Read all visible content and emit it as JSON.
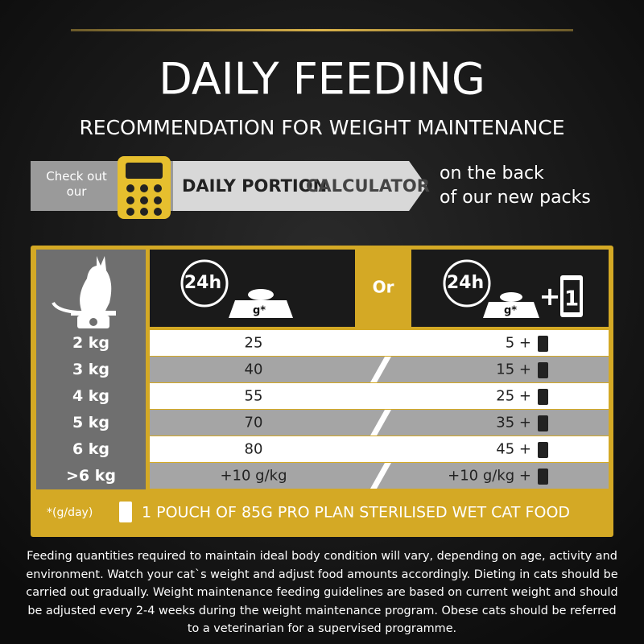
{
  "header": {
    "title": "DAILY FEEDING",
    "subtitle": "RECOMMENDATION FOR WEIGHT MAINTENANCE"
  },
  "banner": {
    "lead": "Check out our",
    "label_bold": "DAILY PORTION",
    "label_light": "CALCULATOR",
    "side_line_1": "on the back",
    "side_line_2": "of our new packs"
  },
  "table": {
    "header": {
      "dry_time": "24h",
      "dry_unit": "g*",
      "or": "Or",
      "wet_time": "24h",
      "wet_unit": "g*",
      "wet_plus": "+",
      "wet_pouch": "1"
    },
    "rows": [
      [
        "2 kg",
        "25",
        "5 +"
      ],
      [
        "3 kg",
        "40",
        "15 +"
      ],
      [
        "4 kg",
        "55",
        "25 +"
      ],
      [
        "5 kg",
        "70",
        "35 +"
      ],
      [
        "6 kg",
        "80",
        "45 +"
      ],
      [
        ">6 kg",
        "+10 g/kg",
        "+10 g/kg +"
      ]
    ],
    "footnote_unit": "*(g/day)",
    "footnote_text": "1 POUCH OF 85G PRO PLAN STERILISED WET CAT FOOD"
  },
  "disclaimer": "Feeding quantities required to maintain ideal body condition will vary, depending on age, activity and environment. Watch your cat`s weight and adjust food amounts accordingly. Dieting in cats should be carried out gradually. Weight maintenance feeding guidelines are based on current weight and should be adjusted every 2-4 weeks during the weight maintenance program. Obese cats should be referred to a veterinarian for a supervised programme."
}
